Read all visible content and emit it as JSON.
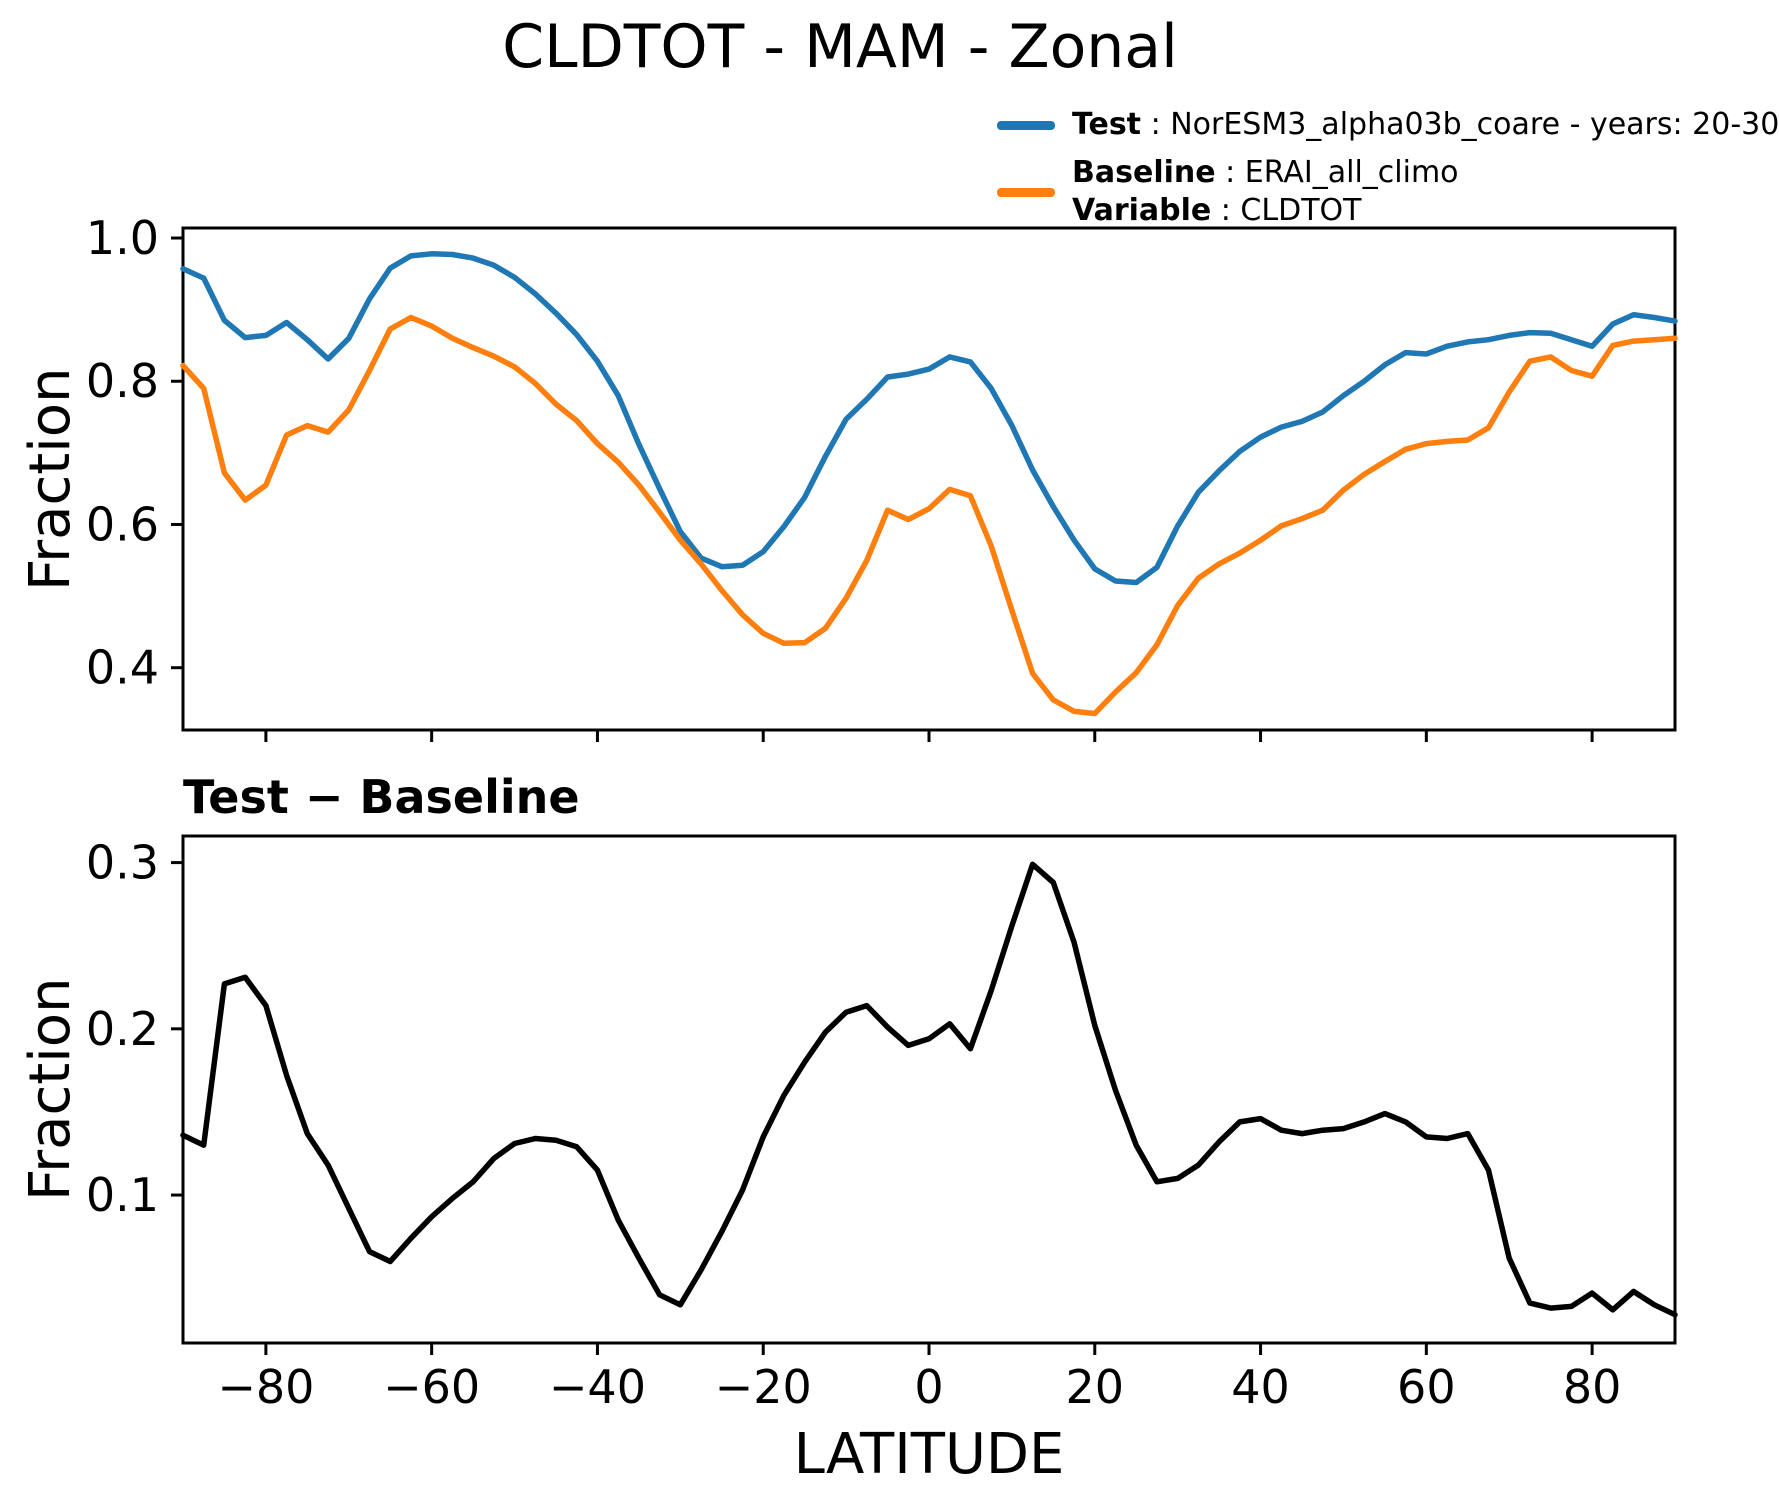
{
  "page": {
    "title": "CLDTOT - MAM - Zonal"
  },
  "legend": {
    "test": {
      "label": "Test",
      "text": " : NorESM3_alpha03b_coare - years: 20-30",
      "color": "#1f77b4"
    },
    "baseline": {
      "label": "Baseline",
      "text": " : ERAI_all_climo",
      "color": "#ff7f0e"
    },
    "variable": {
      "label": "Variable",
      "text": " : CLDTOT"
    }
  },
  "chart_data": [
    {
      "type": "line",
      "panel": "top",
      "ylabel": "Fraction",
      "xlim": [
        -90,
        90
      ],
      "ylim": [
        0.313,
        1.014
      ],
      "yticks": [
        0.4,
        0.6,
        0.8,
        1.0
      ],
      "xticks": [
        -80,
        -60,
        -40,
        -20,
        0,
        20,
        40,
        60,
        80
      ],
      "show_x_tick_labels": false,
      "grid": false,
      "x": [
        -90,
        -87.5,
        -85,
        -82.5,
        -80,
        -77.5,
        -75,
        -72.5,
        -70,
        -67.5,
        -65,
        -62.5,
        -60,
        -57.5,
        -55,
        -52.5,
        -50,
        -47.5,
        -45,
        -42.5,
        -40,
        -37.5,
        -35,
        -32.5,
        -30,
        -27.5,
        -25,
        -22.5,
        -20,
        -17.5,
        -15,
        -12.5,
        -10,
        -7.5,
        -5,
        -2.5,
        0,
        2.5,
        5,
        7.5,
        10,
        12.5,
        15,
        17.5,
        20,
        22.5,
        25,
        27.5,
        30,
        32.5,
        35,
        37.5,
        40,
        42.5,
        45,
        47.5,
        50,
        52.5,
        55,
        57.5,
        60,
        62.5,
        65,
        67.5,
        70,
        72.5,
        75,
        77.5,
        80,
        82.5,
        85,
        87.5,
        90
      ],
      "series": [
        {
          "name": "Test",
          "color": "#1f77b4",
          "values": [
            0.957,
            0.944,
            0.885,
            0.861,
            0.864,
            0.882,
            0.858,
            0.831,
            0.86,
            0.915,
            0.958,
            0.975,
            0.978,
            0.977,
            0.972,
            0.962,
            0.945,
            0.922,
            0.895,
            0.865,
            0.828,
            0.78,
            0.712,
            0.65,
            0.59,
            0.553,
            0.541,
            0.543,
            0.562,
            0.597,
            0.638,
            0.695,
            0.747,
            0.775,
            0.806,
            0.81,
            0.817,
            0.834,
            0.827,
            0.79,
            0.738,
            0.676,
            0.625,
            0.578,
            0.538,
            0.521,
            0.519,
            0.54,
            0.598,
            0.645,
            0.675,
            0.702,
            0.722,
            0.736,
            0.744,
            0.757,
            0.78,
            0.8,
            0.823,
            0.84,
            0.838,
            0.849,
            0.855,
            0.858,
            0.864,
            0.868,
            0.867,
            0.858,
            0.849,
            0.88,
            0.893,
            0.889,
            0.884
          ]
        },
        {
          "name": "Baseline",
          "color": "#ff7f0e",
          "values": [
            0.822,
            0.79,
            0.672,
            0.634,
            0.655,
            0.725,
            0.738,
            0.729,
            0.76,
            0.815,
            0.873,
            0.889,
            0.877,
            0.86,
            0.847,
            0.835,
            0.82,
            0.797,
            0.768,
            0.745,
            0.713,
            0.687,
            0.655,
            0.617,
            0.578,
            0.545,
            0.508,
            0.474,
            0.448,
            0.434,
            0.435,
            0.455,
            0.497,
            0.55,
            0.62,
            0.607,
            0.622,
            0.649,
            0.64,
            0.57,
            0.48,
            0.392,
            0.355,
            0.339,
            0.336,
            0.366,
            0.393,
            0.432,
            0.487,
            0.525,
            0.545,
            0.56,
            0.578,
            0.598,
            0.608,
            0.62,
            0.648,
            0.67,
            0.688,
            0.705,
            0.713,
            0.716,
            0.718,
            0.735,
            0.785,
            0.828,
            0.834,
            0.815,
            0.807,
            0.85,
            0.856,
            0.858,
            0.86
          ]
        }
      ]
    },
    {
      "type": "line",
      "panel": "bottom",
      "title": "Test − Baseline",
      "ylabel": "Fraction",
      "xlabel": "LATITUDE",
      "xlim": [
        -90,
        90
      ],
      "ylim": [
        0.011,
        0.316
      ],
      "yticks": [
        0.1,
        0.2,
        0.3
      ],
      "xticks": [
        -80,
        -60,
        -40,
        -20,
        0,
        20,
        40,
        60,
        80
      ],
      "show_x_tick_labels": true,
      "grid": false,
      "x": [
        -90,
        -87.5,
        -85,
        -82.5,
        -80,
        -77.5,
        -75,
        -72.5,
        -70,
        -67.5,
        -65,
        -62.5,
        -60,
        -57.5,
        -55,
        -52.5,
        -50,
        -47.5,
        -45,
        -42.5,
        -40,
        -37.5,
        -35,
        -32.5,
        -30,
        -27.5,
        -25,
        -22.5,
        -20,
        -17.5,
        -15,
        -12.5,
        -10,
        -7.5,
        -5,
        -2.5,
        0,
        2.5,
        5,
        7.5,
        10,
        12.5,
        15,
        17.5,
        20,
        22.5,
        25,
        27.5,
        30,
        32.5,
        35,
        37.5,
        40,
        42.5,
        45,
        47.5,
        50,
        52.5,
        55,
        57.5,
        60,
        62.5,
        65,
        67.5,
        70,
        72.5,
        75,
        77.5,
        80,
        82.5,
        85,
        87.5,
        90
      ],
      "series": [
        {
          "name": "Test minus Baseline",
          "color": "#000000",
          "values": [
            0.136,
            0.13,
            0.227,
            0.231,
            0.214,
            0.172,
            0.137,
            0.118,
            0.092,
            0.066,
            0.06,
            0.074,
            0.087,
            0.098,
            0.108,
            0.122,
            0.131,
            0.134,
            0.133,
            0.129,
            0.115,
            0.085,
            0.062,
            0.04,
            0.034,
            0.055,
            0.078,
            0.103,
            0.135,
            0.16,
            0.18,
            0.198,
            0.21,
            0.214,
            0.201,
            0.19,
            0.194,
            0.203,
            0.188,
            0.223,
            0.262,
            0.299,
            0.288,
            0.252,
            0.202,
            0.163,
            0.13,
            0.108,
            0.11,
            0.118,
            0.132,
            0.144,
            0.146,
            0.139,
            0.137,
            0.139,
            0.14,
            0.144,
            0.149,
            0.144,
            0.135,
            0.134,
            0.137,
            0.115,
            0.062,
            0.035,
            0.032,
            0.033,
            0.041,
            0.031,
            0.042,
            0.034,
            0.028
          ]
        }
      ]
    }
  ]
}
